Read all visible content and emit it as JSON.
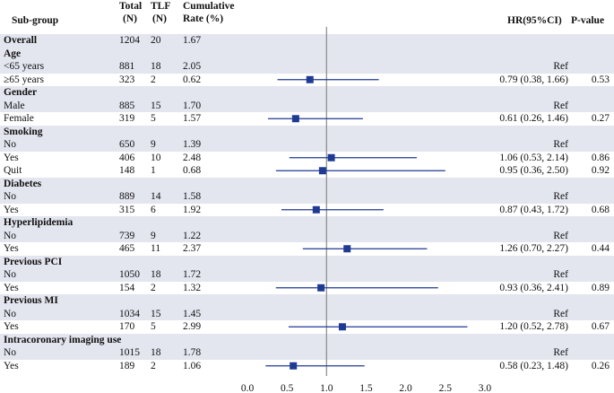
{
  "header": {
    "subgroup": "Sub-group",
    "total": [
      "Total",
      "(N)"
    ],
    "tlf": [
      "TLF",
      "(N)"
    ],
    "rate": [
      "Cumulative",
      "Rate (%)"
    ],
    "hr": "HR(95%CI)",
    "pvalue": "P-value"
  },
  "chart_data": {
    "type": "forest",
    "reference_line": 1.0,
    "xlim": [
      0,
      3.0
    ],
    "ticks": [
      "0.0",
      "0.5",
      "1.0",
      "1.5",
      "2.0",
      "2.5",
      "3.0"
    ],
    "rows": [
      {
        "label": "Overall",
        "bold": true,
        "total": "1204",
        "tlf": "20",
        "rate": "1.67",
        "hr_text": "",
        "p": ""
      },
      {
        "label": "Age",
        "bold": true,
        "total": "",
        "tlf": "",
        "rate": "",
        "hr_text": "",
        "p": ""
      },
      {
        "label": "<65 years",
        "total": "881",
        "tlf": "18",
        "rate": "2.05",
        "hr_text": "Ref",
        "p": ""
      },
      {
        "label": "≥65 years",
        "total": "323",
        "tlf": "2",
        "rate": "0.62",
        "hr_text": "0.79 (0.38, 1.66)",
        "p": "0.53",
        "hr": 0.79,
        "lo": 0.38,
        "hi": 1.66
      },
      {
        "label": "Gender",
        "bold": true,
        "total": "",
        "tlf": "",
        "rate": "",
        "hr_text": "",
        "p": ""
      },
      {
        "label": "Male",
        "total": "885",
        "tlf": "15",
        "rate": "1.70",
        "hr_text": "Ref",
        "p": ""
      },
      {
        "label": "Female",
        "total": "319",
        "tlf": "5",
        "rate": "1.57",
        "hr_text": "0.61 (0.26, 1.46)",
        "p": "0.27",
        "hr": 0.61,
        "lo": 0.26,
        "hi": 1.46
      },
      {
        "label": "Smoking",
        "bold": true,
        "total": "",
        "tlf": "",
        "rate": "",
        "hr_text": "",
        "p": ""
      },
      {
        "label": "No",
        "total": "650",
        "tlf": "9",
        "rate": "1.39",
        "hr_text": "Ref",
        "p": ""
      },
      {
        "label": "Yes",
        "total": "406",
        "tlf": "10",
        "rate": "2.48",
        "hr_text": "1.06 (0.53, 2.14)",
        "p": "0.86",
        "hr": 1.06,
        "lo": 0.53,
        "hi": 2.14
      },
      {
        "label": "Quit",
        "total": "148",
        "tlf": "1",
        "rate": "0.68",
        "hr_text": "0.95 (0.36, 2.50)",
        "p": "0.92",
        "hr": 0.95,
        "lo": 0.36,
        "hi": 2.5
      },
      {
        "label": "Diabetes",
        "bold": true,
        "total": "",
        "tlf": "",
        "rate": "",
        "hr_text": "",
        "p": ""
      },
      {
        "label": "No",
        "total": "889",
        "tlf": "14",
        "rate": "1.58",
        "hr_text": "Ref",
        "p": ""
      },
      {
        "label": "Yes",
        "total": "315",
        "tlf": "6",
        "rate": "1.92",
        "hr_text": "0.87 (0.43, 1.72)",
        "p": "0.68",
        "hr": 0.87,
        "lo": 0.43,
        "hi": 1.72
      },
      {
        "label": "Hyperlipidemia",
        "bold": true,
        "total": "",
        "tlf": "",
        "rate": "",
        "hr_text": "",
        "p": ""
      },
      {
        "label": "No",
        "total": "739",
        "tlf": "9",
        "rate": "1.22",
        "hr_text": "Ref",
        "p": ""
      },
      {
        "label": "Yes",
        "total": "465",
        "tlf": "11",
        "rate": "2.37",
        "hr_text": "1.26 (0.70, 2.27)",
        "p": "0.44",
        "hr": 1.26,
        "lo": 0.7,
        "hi": 2.27
      },
      {
        "label": "Previous PCI",
        "bold": true,
        "total": "",
        "tlf": "",
        "rate": "",
        "hr_text": "",
        "p": ""
      },
      {
        "label": "No",
        "total": "1050",
        "tlf": "18",
        "rate": "1.72",
        "hr_text": "Ref",
        "p": ""
      },
      {
        "label": "Yes",
        "total": "154",
        "tlf": "2",
        "rate": "1.32",
        "hr_text": "0.93 (0.36, 2.41)",
        "p": "0.89",
        "hr": 0.93,
        "lo": 0.36,
        "hi": 2.41
      },
      {
        "label": "Previous MI",
        "bold": true,
        "total": "",
        "tlf": "",
        "rate": "",
        "hr_text": "",
        "p": ""
      },
      {
        "label": "No",
        "total": "1034",
        "tlf": "15",
        "rate": "1.45",
        "hr_text": "Ref",
        "p": ""
      },
      {
        "label": "Yes",
        "total": "170",
        "tlf": "5",
        "rate": "2.99",
        "hr_text": "1.20 (0.52, 2.78)",
        "p": "0.67",
        "hr": 1.2,
        "lo": 0.52,
        "hi": 2.78
      },
      {
        "label": "Intracoronary imaging use",
        "bold": true,
        "total": "",
        "tlf": "",
        "rate": "",
        "hr_text": "",
        "p": ""
      },
      {
        "label": "No",
        "total": "1015",
        "tlf": "18",
        "rate": "1.78",
        "hr_text": "Ref",
        "p": ""
      },
      {
        "label": "Yes",
        "total": "189",
        "tlf": "2",
        "rate": "1.06",
        "hr_text": "0.58 (0.23, 1.48)",
        "p": "0.26",
        "hr": 0.58,
        "lo": 0.23,
        "hi": 1.48
      }
    ]
  },
  "colors": {
    "marker": "#1f3a93",
    "band": "#e3e5ef",
    "reference_line": "#888888"
  }
}
